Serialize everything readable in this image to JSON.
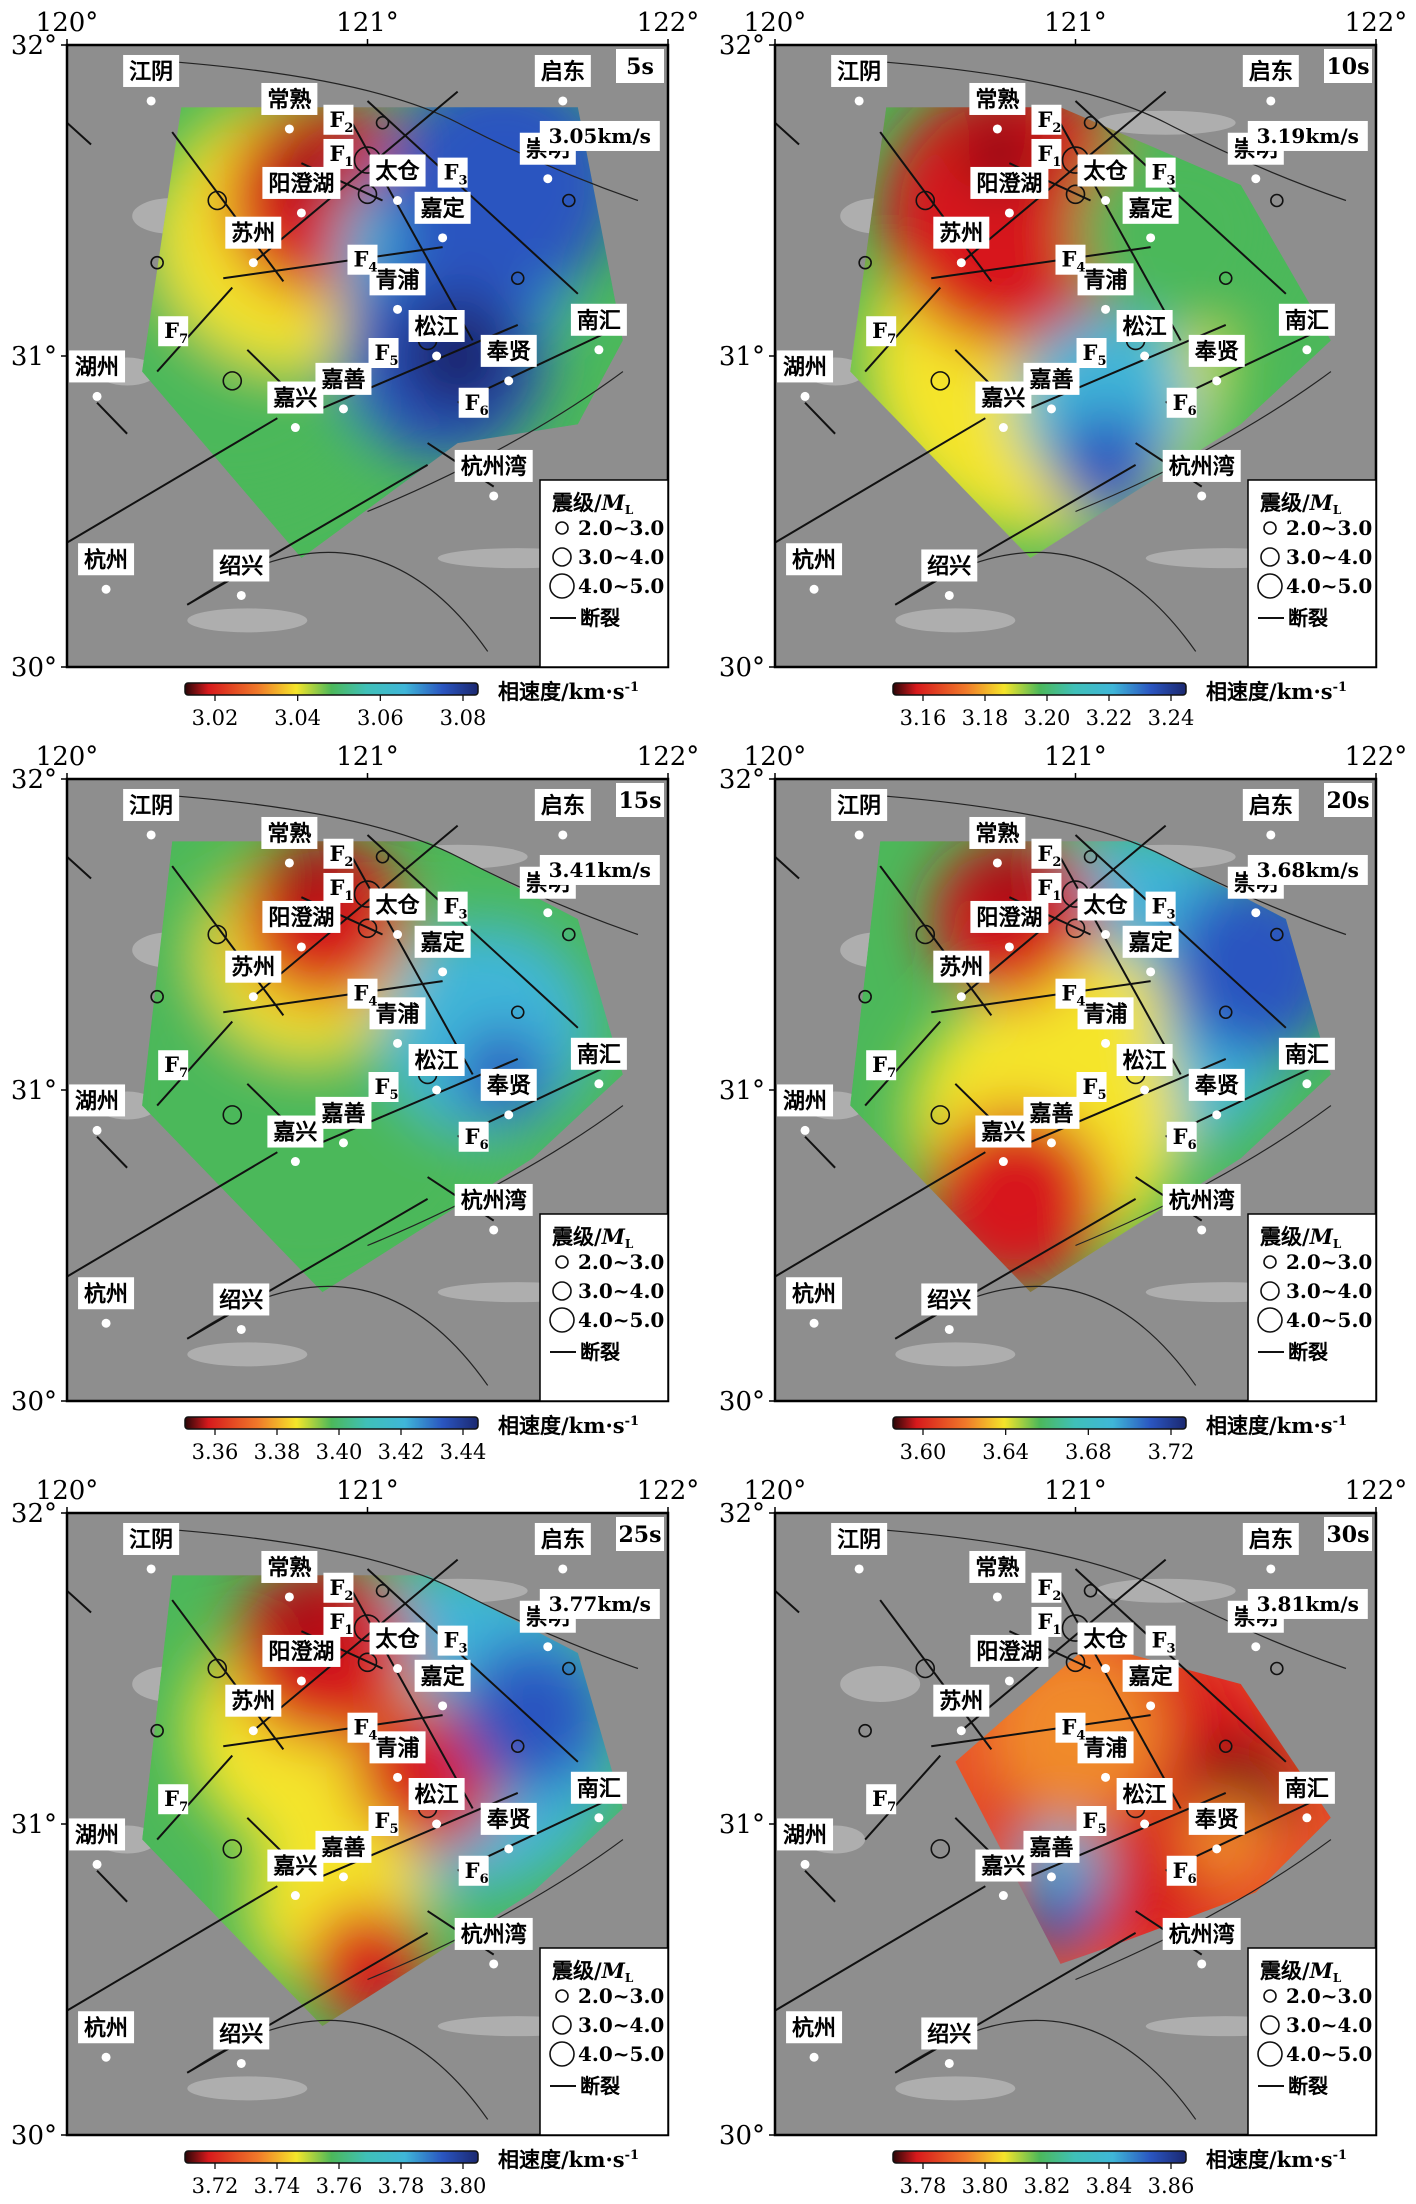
{
  "figure": {
    "axis": {
      "lon_ticks": [
        "120°",
        "121°",
        "122°"
      ],
      "lat_ticks": [
        "32°",
        "31°",
        "30°"
      ]
    },
    "cities": [
      {
        "id": "jiangyin",
        "name": "江阴",
        "lon": 120.28,
        "lat": 31.82
      },
      {
        "id": "changshu",
        "name": "常熟",
        "lon": 120.74,
        "lat": 31.73
      },
      {
        "id": "yangchenghu",
        "name": "阳澄湖",
        "lon": 120.78,
        "lat": 31.46
      },
      {
        "id": "taicang",
        "name": "太仓",
        "lon": 121.1,
        "lat": 31.5
      },
      {
        "id": "jiading",
        "name": "嘉定",
        "lon": 121.25,
        "lat": 31.38
      },
      {
        "id": "chongming",
        "name": "崇明",
        "lon": 121.6,
        "lat": 31.57
      },
      {
        "id": "qidong",
        "name": "启东",
        "lon": 121.65,
        "lat": 31.82
      },
      {
        "id": "suzhou",
        "name": "苏州",
        "lon": 120.62,
        "lat": 31.3
      },
      {
        "id": "qingpu",
        "name": "青浦",
        "lon": 121.1,
        "lat": 31.15
      },
      {
        "id": "songjiang",
        "name": "松江",
        "lon": 121.23,
        "lat": 31.0
      },
      {
        "id": "nanhui",
        "name": "南汇",
        "lon": 121.77,
        "lat": 31.02
      },
      {
        "id": "fengxian",
        "name": "奉贤",
        "lon": 121.47,
        "lat": 30.92
      },
      {
        "id": "huzhou",
        "name": "湖州",
        "lon": 120.1,
        "lat": 30.87
      },
      {
        "id": "jiaxing",
        "name": "嘉兴",
        "lon": 120.76,
        "lat": 30.77
      },
      {
        "id": "jiashan",
        "name": "嘉善",
        "lon": 120.92,
        "lat": 30.83
      },
      {
        "id": "hangzhouwan",
        "name": "杭州湾",
        "lon": 121.42,
        "lat": 30.55
      },
      {
        "id": "hangzhou",
        "name": "杭州",
        "lon": 120.13,
        "lat": 30.25
      },
      {
        "id": "shaoxing",
        "name": "绍兴",
        "lon": 120.58,
        "lat": 30.23
      }
    ],
    "faults": [
      {
        "label": "F",
        "sub": "1",
        "lon": 120.9,
        "lat": 31.64
      },
      {
        "label": "F",
        "sub": "2",
        "lon": 120.9,
        "lat": 31.75
      },
      {
        "label": "F",
        "sub": "3",
        "lon": 121.28,
        "lat": 31.58
      },
      {
        "label": "F",
        "sub": "4",
        "lon": 120.98,
        "lat": 31.3
      },
      {
        "label": "F",
        "sub": "5",
        "lon": 121.05,
        "lat": 31.0
      },
      {
        "label": "F",
        "sub": "6",
        "lon": 121.35,
        "lat": 30.84
      },
      {
        "label": "F",
        "sub": "7",
        "lon": 120.35,
        "lat": 31.07
      }
    ],
    "legend": {
      "title": "震级/",
      "title_symbol": "M",
      "title_sub": "L",
      "items": [
        "2.0~3.0",
        "3.0~4.0",
        "4.0~5.0"
      ],
      "fault_label": "断裂"
    },
    "colorbar_label": "相速度/km·s",
    "colorbar_exp": "-1"
  },
  "panels": [
    {
      "id": "5s",
      "period": "5s",
      "avg_velocity": "3.05km/s",
      "colorbar_ticks": [
        "3.02",
        "3.04",
        "3.06",
        "3.08"
      ]
    },
    {
      "id": "10s",
      "period": "10s",
      "avg_velocity": "3.19km/s",
      "colorbar_ticks": [
        "3.16",
        "3.18",
        "3.20",
        "3.22",
        "3.24"
      ]
    },
    {
      "id": "15s",
      "period": "15s",
      "avg_velocity": "3.41km/s",
      "colorbar_ticks": [
        "3.36",
        "3.38",
        "3.40",
        "3.42",
        "3.44"
      ]
    },
    {
      "id": "20s",
      "period": "20s",
      "avg_velocity": "3.68km/s",
      "colorbar_ticks": [
        "3.60",
        "3.64",
        "3.68",
        "3.72"
      ]
    },
    {
      "id": "25s",
      "period": "25s",
      "avg_velocity": "3.77km/s",
      "colorbar_ticks": [
        "3.72",
        "3.74",
        "3.76",
        "3.78",
        "3.80"
      ]
    },
    {
      "id": "30s",
      "period": "30s",
      "avg_velocity": "3.81km/s",
      "colorbar_ticks": [
        "3.78",
        "3.80",
        "3.82",
        "3.84",
        "3.86"
      ]
    }
  ],
  "colors": {
    "background_gray": "#8e8e8e",
    "red": "#d7191c",
    "dark_red": "#7a0d10",
    "yellow": "#f5e52a",
    "green": "#4cb85a",
    "cyan": "#3fb6d8",
    "blue": "#2a55c0",
    "dark_blue": "#1b2870"
  }
}
